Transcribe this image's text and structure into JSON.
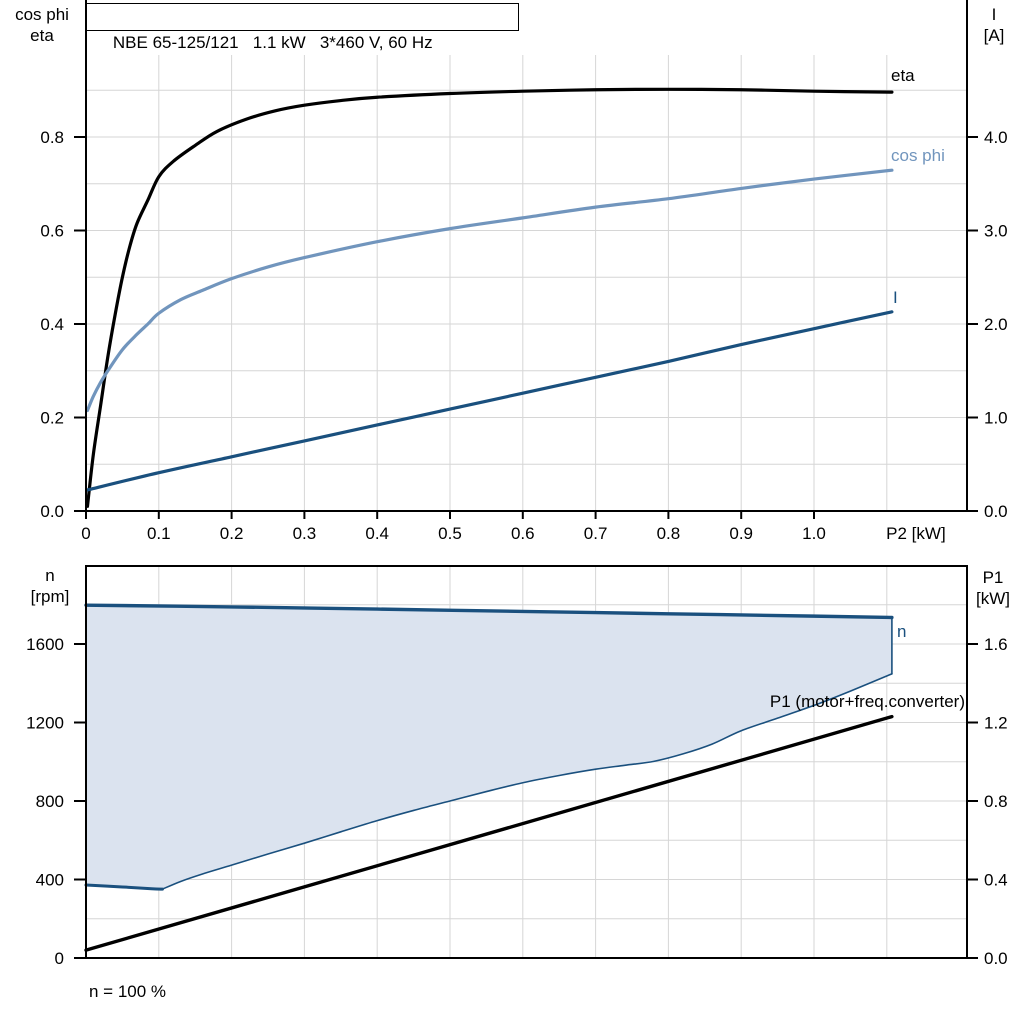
{
  "title": "NBE 65-125/121   1.1 kW   3*460 V, 60 Hz",
  "colors": {
    "grid": "#d6d6d6",
    "axis": "#000000",
    "curve_black": "#000000",
    "curve_light_blue": "#7195bd",
    "curve_dark_blue": "#1a507e",
    "band_fill": "#dbe3ef"
  },
  "chart_data": [
    {
      "type": "line",
      "title": "NBE 65-125/121   1.1 kW   3*460 V, 60 Hz",
      "xlabel": "P2 [kW]",
      "ylabel_left_lines": [
        "cos phi",
        "eta"
      ],
      "ylabel_right_lines": [
        "I",
        "[A]"
      ],
      "xlim": [
        0,
        1.21
      ],
      "ylim_left": [
        0,
        0.98
      ],
      "ylim_right": [
        0,
        4.9
      ],
      "grid": true,
      "legend_position": "end-of-curve",
      "x_ticks": [
        {
          "v": 0,
          "t": "0"
        },
        {
          "v": 0.1,
          "t": "0.1"
        },
        {
          "v": 0.2,
          "t": "0.2"
        },
        {
          "v": 0.3,
          "t": "0.3"
        },
        {
          "v": 0.4,
          "t": "0.4"
        },
        {
          "v": 0.5,
          "t": "0.5"
        },
        {
          "v": 0.6,
          "t": "0.6"
        },
        {
          "v": 0.7,
          "t": "0.7"
        },
        {
          "v": 0.8,
          "t": "0.8"
        },
        {
          "v": 0.9,
          "t": "0.9"
        },
        {
          "v": 1.0,
          "t": "1.0"
        }
      ],
      "y_ticks_left": [
        {
          "v": 0,
          "t": "0.0"
        },
        {
          "v": 0.2,
          "t": "0.2"
        },
        {
          "v": 0.4,
          "t": "0.4"
        },
        {
          "v": 0.6,
          "t": "0.6"
        },
        {
          "v": 0.8,
          "t": "0.8"
        }
      ],
      "y_ticks_right": [
        {
          "v": 0,
          "t": "0.0"
        },
        {
          "v": 1,
          "t": "1.0"
        },
        {
          "v": 2,
          "t": "2.0"
        },
        {
          "v": 3,
          "t": "3.0"
        },
        {
          "v": 4,
          "t": "4.0"
        }
      ],
      "x_grid": [
        0.1,
        0.2,
        0.3,
        0.4,
        0.5,
        0.6,
        0.7,
        0.8,
        0.9,
        1.0,
        1.1
      ],
      "y_grid": [
        0.1,
        0.2,
        0.3,
        0.4,
        0.5,
        0.6,
        0.7,
        0.8,
        0.9
      ],
      "series": [
        {
          "name": "eta",
          "label": "eta",
          "axis": "left",
          "color": "#000000",
          "width": 3.2,
          "points": [
            [
              0.002,
              0.01
            ],
            [
              0.01,
              0.12
            ],
            [
              0.02,
              0.225
            ],
            [
              0.03,
              0.33
            ],
            [
              0.04,
              0.42
            ],
            [
              0.05,
              0.5
            ],
            [
              0.06,
              0.565
            ],
            [
              0.07,
              0.615
            ],
            [
              0.085,
              0.665
            ],
            [
              0.1,
              0.715
            ],
            [
              0.12,
              0.748
            ],
            [
              0.15,
              0.782
            ],
            [
              0.18,
              0.812
            ],
            [
              0.22,
              0.838
            ],
            [
              0.26,
              0.856
            ],
            [
              0.3,
              0.868
            ],
            [
              0.35,
              0.878
            ],
            [
              0.4,
              0.885
            ],
            [
              0.5,
              0.893
            ],
            [
              0.6,
              0.898
            ],
            [
              0.7,
              0.901
            ],
            [
              0.8,
              0.902
            ],
            [
              0.9,
              0.901
            ],
            [
              1.0,
              0.898
            ],
            [
              1.107,
              0.896
            ]
          ]
        },
        {
          "name": "cos_phi",
          "label": "cos phi",
          "axis": "left",
          "color": "#7195bd",
          "width": 3.2,
          "points": [
            [
              0.002,
              0.215
            ],
            [
              0.01,
              0.245
            ],
            [
              0.02,
              0.275
            ],
            [
              0.03,
              0.3
            ],
            [
              0.05,
              0.345
            ],
            [
              0.07,
              0.378
            ],
            [
              0.085,
              0.4
            ],
            [
              0.1,
              0.423
            ],
            [
              0.13,
              0.452
            ],
            [
              0.16,
              0.472
            ],
            [
              0.2,
              0.497
            ],
            [
              0.25,
              0.522
            ],
            [
              0.3,
              0.542
            ],
            [
              0.4,
              0.576
            ],
            [
              0.5,
              0.604
            ],
            [
              0.6,
              0.627
            ],
            [
              0.7,
              0.65
            ],
            [
              0.8,
              0.668
            ],
            [
              0.9,
              0.69
            ],
            [
              1.0,
              0.71
            ],
            [
              1.107,
              0.729
            ]
          ]
        },
        {
          "name": "I",
          "label": "I",
          "axis": "right",
          "color": "#1a507e",
          "width": 3.2,
          "points": [
            [
              0.002,
              0.225
            ],
            [
              0.1,
              0.41
            ],
            [
              0.2,
              0.58
            ],
            [
              0.3,
              0.75
            ],
            [
              0.4,
              0.92
            ],
            [
              0.5,
              1.09
            ],
            [
              0.6,
              1.26
            ],
            [
              0.7,
              1.43
            ],
            [
              0.8,
              1.6
            ],
            [
              0.9,
              1.78
            ],
            [
              1.0,
              1.95
            ],
            [
              1.107,
              2.13
            ]
          ]
        }
      ]
    },
    {
      "type": "line",
      "xlabel": "",
      "ylabel_left_lines": [
        "n",
        "[rpm]"
      ],
      "ylabel_right_lines": [
        "P1",
        "[kW]"
      ],
      "footnote": "n = 100 %",
      "xlim": [
        0,
        1.21
      ],
      "ylim_left": [
        0,
        2000
      ],
      "ylim_right": [
        0,
        2.0
      ],
      "grid": true,
      "legend_position": "end-of-curve",
      "x_ticks": [],
      "y_ticks_left": [
        {
          "v": 0,
          "t": "0"
        },
        {
          "v": 400,
          "t": "400"
        },
        {
          "v": 800,
          "t": "800"
        },
        {
          "v": 1200,
          "t": "1200"
        },
        {
          "v": 1600,
          "t": "1600"
        }
      ],
      "y_ticks_right": [
        {
          "v": 0,
          "t": "0.0"
        },
        {
          "v": 0.4,
          "t": "0.4"
        },
        {
          "v": 0.8,
          "t": "0.8"
        },
        {
          "v": 1.2,
          "t": "1.2"
        },
        {
          "v": 1.6,
          "t": "1.6"
        }
      ],
      "x_grid": [
        0.1,
        0.2,
        0.3,
        0.4,
        0.5,
        0.6,
        0.7,
        0.8,
        0.9,
        1.0,
        1.1
      ],
      "y_grid": [
        200,
        400,
        600,
        800,
        1000,
        1200,
        1400,
        1600,
        1800
      ],
      "band": {
        "upper": "n",
        "lower": [
          "n_min_flat",
          "n_min"
        ],
        "fill": "#dbe3ef"
      },
      "series": [
        {
          "name": "n",
          "label": "n",
          "axis": "left",
          "color": "#1a507e",
          "width": 3.4,
          "points": [
            [
              0,
              1798
            ],
            [
              0.2,
              1789
            ],
            [
              0.4,
              1778
            ],
            [
              0.6,
              1766
            ],
            [
              0.8,
              1754
            ],
            [
              1.0,
              1742
            ],
            [
              1.107,
              1735
            ]
          ]
        },
        {
          "name": "n_min_flat",
          "axis": "left",
          "color": "#1a507e",
          "width": 3,
          "points": [
            [
              0,
              372
            ],
            [
              0.05,
              362
            ],
            [
              0.09,
              353
            ],
            [
              0.105,
              351
            ]
          ]
        },
        {
          "name": "n_min",
          "axis": "left",
          "color": "#1a507e",
          "width": 1.6,
          "points": [
            [
              0.105,
              351
            ],
            [
              0.13,
              390
            ],
            [
              0.16,
              428
            ],
            [
              0.2,
              473
            ],
            [
              0.25,
              530
            ],
            [
              0.3,
              585
            ],
            [
              0.35,
              643
            ],
            [
              0.4,
              700
            ],
            [
              0.45,
              752
            ],
            [
              0.5,
              800
            ],
            [
              0.55,
              848
            ],
            [
              0.6,
              893
            ],
            [
              0.65,
              930
            ],
            [
              0.7,
              962
            ],
            [
              0.74,
              982
            ],
            [
              0.78,
              1002
            ],
            [
              0.82,
              1040
            ],
            [
              0.86,
              1090
            ],
            [
              0.9,
              1158
            ],
            [
              0.95,
              1222
            ],
            [
              1.0,
              1287
            ],
            [
              1.05,
              1360
            ],
            [
              1.107,
              1448
            ]
          ]
        },
        {
          "name": "band_edge",
          "axis": "left",
          "color": "#1a507e",
          "width": 1.6,
          "straight": true,
          "points": [
            [
              1.107,
              1448
            ],
            [
              1.107,
              1735
            ]
          ]
        },
        {
          "name": "P1",
          "label": "P1 (motor+freq.converter)",
          "axis": "right",
          "color": "#000000",
          "width": 3.4,
          "straight": true,
          "points": [
            [
              0,
              0.04
            ],
            [
              1.107,
              1.23
            ]
          ]
        }
      ]
    }
  ]
}
